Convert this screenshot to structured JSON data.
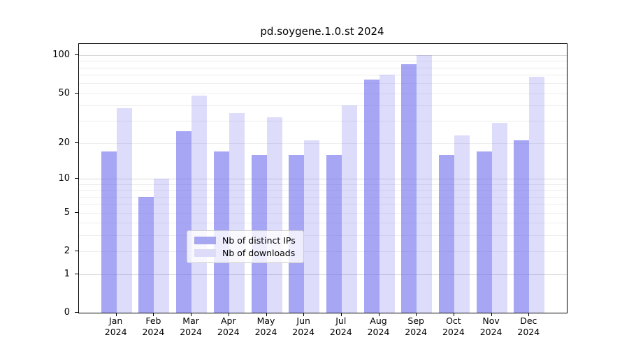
{
  "title": "pd.soygene.1.0.st 2024",
  "legend": {
    "items": [
      {
        "label": "Nb of distinct IPs",
        "color": "#a6a6f1"
      },
      {
        "label": "Nb of downloads",
        "color": "#dcdcf8"
      }
    ]
  },
  "chart_data": {
    "type": "bar",
    "title": "pd.soygene.1.0.st 2024",
    "categories": [
      "Jan",
      "Feb",
      "Mar",
      "Apr",
      "May",
      "Jun",
      "Jul",
      "Aug",
      "Sep",
      "Oct",
      "Nov",
      "Dec"
    ],
    "x_sublabel_year": "2024",
    "series": [
      {
        "name": "Nb of distinct IPs",
        "values": [
          17,
          7,
          25,
          17,
          16,
          16,
          16,
          64,
          85,
          16,
          17,
          21
        ],
        "bar_color": "rgba(102,102,238,0.58)",
        "legend_color": "#a6a6f1"
      },
      {
        "name": "Nb of downloads",
        "values": [
          38,
          10,
          48,
          35,
          32,
          21,
          40,
          70,
          100,
          23,
          29,
          68
        ],
        "bar_color": "rgba(102,102,238,0.22)",
        "legend_color": "#dcdcf8"
      }
    ],
    "y_scale": "log10(1+v)",
    "y_ticks": [
      0,
      1,
      2,
      5,
      10,
      20,
      50,
      100
    ],
    "major_gridlines": [
      1,
      10,
      100
    ],
    "minor_gridlines": [
      2,
      3,
      4,
      5,
      6,
      7,
      8,
      9,
      20,
      30,
      40,
      50,
      60,
      70,
      80,
      90
    ],
    "ylim_top_value": 110,
    "grid": true,
    "legend_position": "bottom-center",
    "colors": {
      "axis": "#000000",
      "major_grid": "#d9d9d9",
      "minor_grid": "#ededed",
      "background": "#ffffff"
    }
  }
}
